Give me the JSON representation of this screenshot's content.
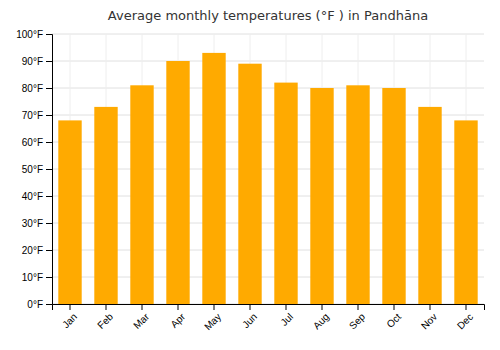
{
  "chart_data": {
    "type": "bar",
    "title": "Average monthly temperatures (°F ) in Pandhāna",
    "categories": [
      "Jan",
      "Feb",
      "Mar",
      "Apr",
      "May",
      "Jun",
      "Jul",
      "Aug",
      "Sep",
      "Oct",
      "Nov",
      "Dec"
    ],
    "values": [
      68,
      73,
      81,
      90,
      93,
      89,
      82,
      80,
      81,
      80,
      73,
      68
    ],
    "color": "#FFAA00",
    "ylim": [
      0,
      100
    ],
    "yticks": [
      {
        "value": 0,
        "label": "0°F"
      },
      {
        "value": 10,
        "label": "10°F"
      },
      {
        "value": 20,
        "label": "20°F"
      },
      {
        "value": 30,
        "label": "30°F"
      },
      {
        "value": 40,
        "label": "40°F"
      },
      {
        "value": 50,
        "label": "50°F"
      },
      {
        "value": 60,
        "label": "60°F"
      },
      {
        "value": 70,
        "label": "70°F"
      },
      {
        "value": 80,
        "label": "80°F"
      },
      {
        "value": 90,
        "label": "90°F"
      },
      {
        "value": 100,
        "label": "100°F"
      }
    ],
    "grid": true
  }
}
